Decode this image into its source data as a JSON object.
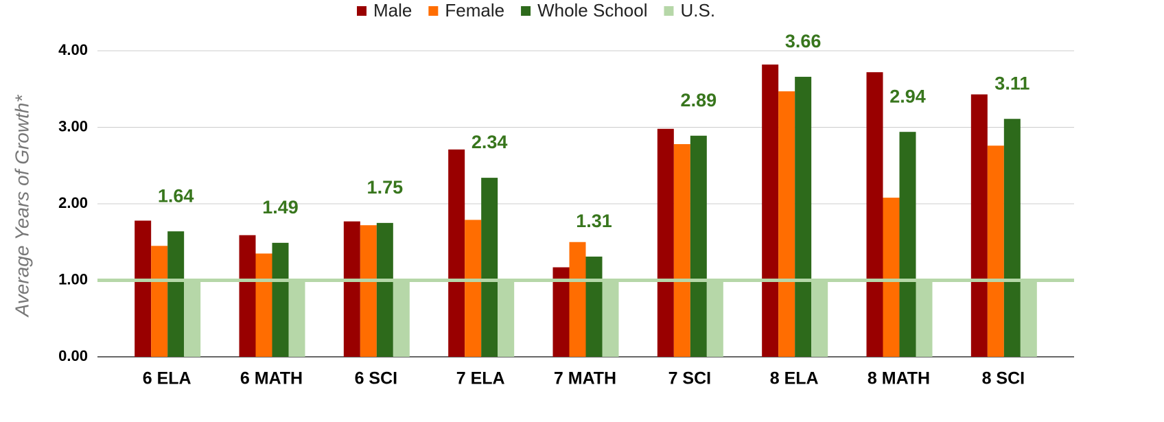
{
  "chart_data": {
    "type": "bar",
    "y_axis_label": "Average Years of Growth*",
    "categories": [
      "6 ELA",
      "6 MATH",
      "6 SCI",
      "7 ELA",
      "7 MATH",
      "7 SCI",
      "8 ELA",
      "8 MATH",
      "8 SCI"
    ],
    "series": [
      {
        "name": "Male",
        "color": "#990000",
        "values": [
          1.78,
          1.59,
          1.77,
          2.71,
          1.17,
          2.98,
          3.82,
          3.72,
          3.43
        ]
      },
      {
        "name": "Female",
        "color": "#ff6d01",
        "values": [
          1.45,
          1.35,
          1.72,
          1.79,
          1.5,
          2.78,
          3.47,
          2.08,
          2.76
        ]
      },
      {
        "name": "Whole School",
        "color": "#2d6a1b",
        "values": [
          1.64,
          1.49,
          1.75,
          2.34,
          1.31,
          2.89,
          3.66,
          2.94,
          3.11
        ],
        "data_labels": true
      },
      {
        "name": "U.S.",
        "color": "#b6d7a8",
        "values": [
          1,
          1,
          1,
          1,
          1,
          1,
          1,
          1,
          1
        ]
      }
    ],
    "ylim": [
      0,
      4
    ],
    "yticks": [
      {
        "value": 0,
        "label": "0.00"
      },
      {
        "value": 1,
        "label": "1.00"
      },
      {
        "value": 2,
        "label": "2.00"
      },
      {
        "value": 3,
        "label": "3.00"
      },
      {
        "value": 4,
        "label": "4.00"
      }
    ],
    "grid": true,
    "legend": "top"
  }
}
